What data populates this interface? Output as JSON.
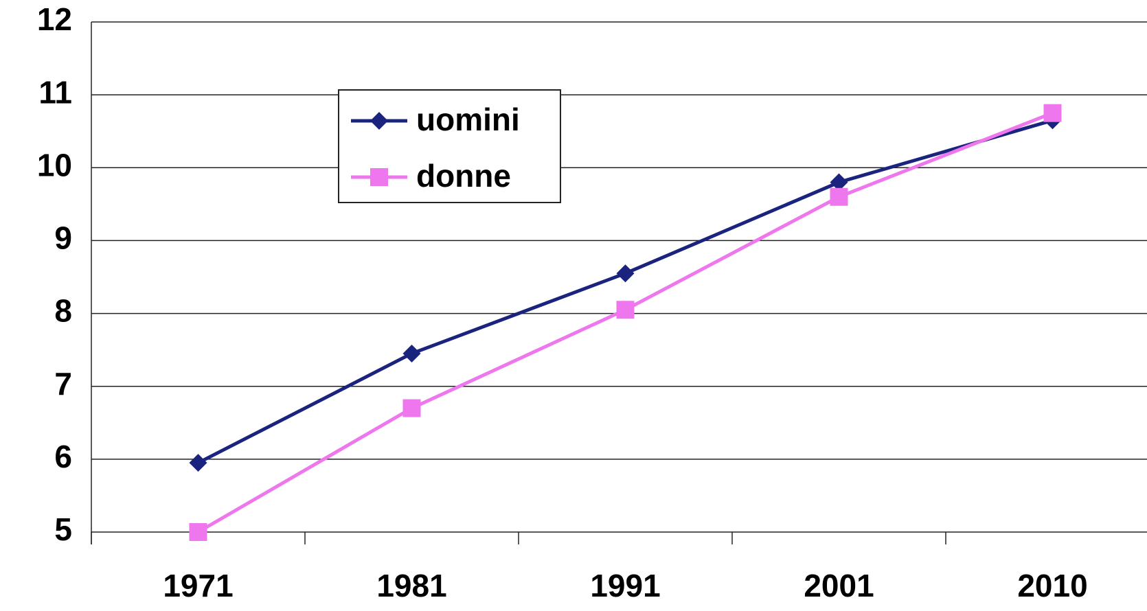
{
  "chart_data": {
    "type": "line",
    "categories": [
      "1971",
      "1981",
      "1991",
      "2001",
      "2010"
    ],
    "series": [
      {
        "name": "uomini",
        "color": "#1a237e",
        "marker": "diamond",
        "values": [
          5.95,
          7.45,
          8.55,
          9.8,
          10.65
        ]
      },
      {
        "name": "donne",
        "color": "#ee77ee",
        "marker": "square",
        "values": [
          5.0,
          6.7,
          8.05,
          9.6,
          10.75
        ]
      }
    ],
    "ylim": [
      5,
      12
    ],
    "yticks": [
      5,
      6,
      7,
      8,
      9,
      10,
      11,
      12
    ],
    "grid": true,
    "legend": "top-left"
  }
}
